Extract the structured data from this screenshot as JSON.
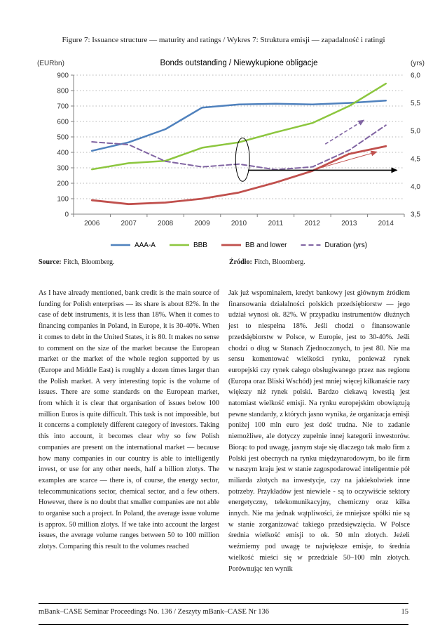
{
  "figure": {
    "caption": "Figure 7: Issuance structure — maturity and ratings / Wykres 7: Struktura emisji — zapadalność i ratingi"
  },
  "sources": {
    "en_label": "Source:",
    "en_value": "Fitch, Bloomberg.",
    "pl_label": "Źródło:",
    "pl_value": "Fitch, Bloomberg."
  },
  "columns": {
    "english": "As I have already mentioned, bank credit is the main source of funding for Polish enterprises — its share is about 82%. In the case of debt instruments, it is less than 18%. When it comes to financing companies in Poland, in Europe, it is 30-40%. When it comes to debt in the United States, it is 80. It makes no sense to comment on the size of the market because the European market or the market of the whole region supported by us (Europe and Middle East) is roughly a dozen times larger than the Polish market. A very interesting topic is the volume of issues. There are some standards on the European market, from which it is clear that organisation of issues below 100 million Euros is quite difficult. This task is not impossible, but it concerns a completely different category of investors. Taking this into account, it becomes clear why so few Polish companies are present on the international market — because how many companies in our country is able to intelligently invest, or use for any other needs, half a billion zlotys. The examples are scarce — there is, of course, the energy sector, telecommunications sector, chemical sector, and a few others. However, there is no doubt that smaller companies are not able to organise such a project. In Poland, the average issue volume is approx. 50 million zlotys. If we take into account the largest issues, the average volume ranges between 50 to 100 million zlotys. Comparing this result to the volumes reached",
    "polish": "Jak już wspominałem, kredyt bankowy jest głównym źródłem finansowania działalności polskich przedsiębiorstw — jego udział wynosi ok. 82%. W przypadku instrumentów dłużnych jest to niespełna 18%. Jeśli chodzi o finansowanie przedsiębiorstw w Polsce, w Europie, jest to 30-40%. Jeśli chodzi o dług w Stanach Zjednoczonych, to jest 80. Nie ma sensu komentować wielkości rynku, ponieważ rynek europejski czy rynek całego obsługiwanego przez nas regionu (Europa oraz Bliski Wschód) jest mniej więcej kilkanaście razy większy niż rynek polski. Bardzo ciekawą kwestią jest natomiast wielkość emisji. Na rynku europejskim obowiązują pewne standardy, z których jasno wynika, że organizacja emisji poniżej 100 mln euro jest dość trudna. Nie to zadanie niemożliwe, ale dotyczy zupełnie innej kategorii inwestorów. Biorąc to pod uwagę, jasnym staje się dlaczego tak mało firm z Polski jest obecnych na rynku międzynarodowym, bo ile firm w naszym kraju jest w stanie zagospodarować inteligentnie pół miliarda złotych na inwestycje, czy na jakiekolwiek inne potrzeby. Przykładów jest niewiele - są to oczywiście sektory energetyczny, telekomunikacyjny, chemiczny oraz kilka innych. Nie ma jednak wątpliwości, że mniejsze spółki nie są w stanie zorganizować takiego przedsięwzięcia. W Polsce średnia wielkość emisji to ok. 50 mln złotych. Jeżeli weźmiemy pod uwagę te największe emisje, to średnia wielkość mieści się w przedziale 50–100 mln złotych. Porównując ten wynik"
  },
  "footer": {
    "left": "mBank–CASE Seminar Proceedings No. 136 / Zeszyty mBank–CASE Nr 136",
    "page_number": "15"
  },
  "chart_data": {
    "type": "line",
    "title": "Bonds outstanding / Niewykupione obligacje",
    "left_axis_label": "(EURbn)",
    "right_axis_label": "(yrs)",
    "categories": [
      2006,
      2007,
      2008,
      2009,
      2010,
      2011,
      2012,
      2013,
      2014
    ],
    "left_axis": {
      "min": 0,
      "max": 900,
      "step": 100,
      "ticks": [
        "0",
        "100",
        "200",
        "300",
        "400",
        "500",
        "600",
        "700",
        "800",
        "900"
      ]
    },
    "right_axis": {
      "min": 3.5,
      "max": 6.0,
      "step": 0.5,
      "ticks": [
        "3,5",
        "4,0",
        "4,5",
        "5,0",
        "5,5",
        "6,0"
      ]
    },
    "grid": true,
    "legend_position": "bottom",
    "series": [
      {
        "name": "AAA-A",
        "axis": "left",
        "color": "#4F81BD",
        "width": 2.5,
        "values": [
          410,
          465,
          550,
          690,
          710,
          715,
          710,
          720,
          735
        ]
      },
      {
        "name": "BBB",
        "axis": "left",
        "color": "#8CC63E",
        "width": 2.5,
        "values": [
          290,
          330,
          345,
          430,
          465,
          530,
          590,
          700,
          845
        ]
      },
      {
        "name": "BB and lower",
        "axis": "left",
        "color": "#C0504D",
        "width": 2.8,
        "values": [
          90,
          65,
          75,
          100,
          140,
          205,
          280,
          390,
          440
        ]
      },
      {
        "name": "Duration (yrs)",
        "axis": "right",
        "color": "#8064A2",
        "width": 2,
        "dash": "7,4",
        "values": [
          4.8,
          4.75,
          4.45,
          4.35,
          4.4,
          4.3,
          4.35,
          4.65,
          5.1
        ]
      }
    ],
    "annotations": [
      {
        "type": "ellipse",
        "cx_year": 2010.1,
        "cy": 4.48,
        "rx_years": 0.19,
        "ry": 0.39,
        "color": "#000000"
      },
      {
        "type": "arrow",
        "from_year": 2010.25,
        "from": 4.29,
        "to_year": 2014.3,
        "to": 4.29,
        "color": "#000000",
        "width": 1.6
      },
      {
        "type": "arrow",
        "from_year": 2012.35,
        "from": 4.76,
        "to_year": 2013.4,
        "to": 5.19,
        "color": "#8064A2",
        "width": 1.6,
        "dash": "5,3"
      },
      {
        "type": "arrow",
        "from_year": 2012.15,
        "from": 4.32,
        "to_year": 2013.75,
        "to": 4.62,
        "color": "#C0504D",
        "width": 1
      }
    ]
  }
}
